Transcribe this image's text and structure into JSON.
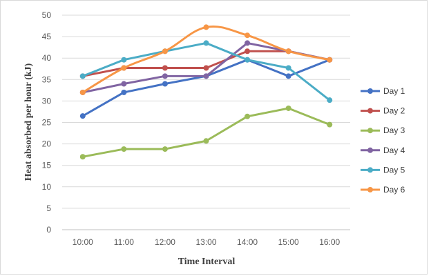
{
  "chart_data": {
    "type": "line",
    "xlabel": "Time Interval",
    "ylabel": "Heat absorbed per hour (kJ)",
    "categories": [
      "10:00",
      "11:00",
      "12:00",
      "13:00",
      "14:00",
      "15:00",
      "16:00"
    ],
    "ylim": [
      0,
      50
    ],
    "yticks": [
      0,
      5,
      10,
      15,
      20,
      25,
      30,
      35,
      40,
      45,
      50
    ],
    "grid": true,
    "legend": "right",
    "series": [
      {
        "name": "Day 1",
        "color": "#4472C4",
        "smooth": false,
        "values": [
          26.5,
          32.0,
          34.0,
          35.8,
          39.6,
          35.8,
          39.6
        ]
      },
      {
        "name": "Day 2",
        "color": "#C0504D",
        "smooth": false,
        "values": [
          35.8,
          37.7,
          37.7,
          37.7,
          41.6,
          41.6,
          39.6
        ]
      },
      {
        "name": "Day 3",
        "color": "#9BBB59",
        "smooth": false,
        "values": [
          17.0,
          18.8,
          18.8,
          20.7,
          26.4,
          28.3,
          24.5
        ]
      },
      {
        "name": "Day 4",
        "color": "#8064A2",
        "smooth": false,
        "values": [
          32.0,
          34.0,
          35.8,
          35.8,
          43.5,
          41.6,
          39.6
        ]
      },
      {
        "name": "Day 5",
        "color": "#4BACC6",
        "smooth": false,
        "values": [
          35.8,
          39.6,
          41.6,
          43.5,
          39.6,
          37.7,
          30.2
        ]
      },
      {
        "name": "Day 6",
        "color": "#F79646",
        "smooth": true,
        "values": [
          32.0,
          37.7,
          41.6,
          47.2,
          45.3,
          41.6,
          39.6
        ]
      }
    ]
  }
}
